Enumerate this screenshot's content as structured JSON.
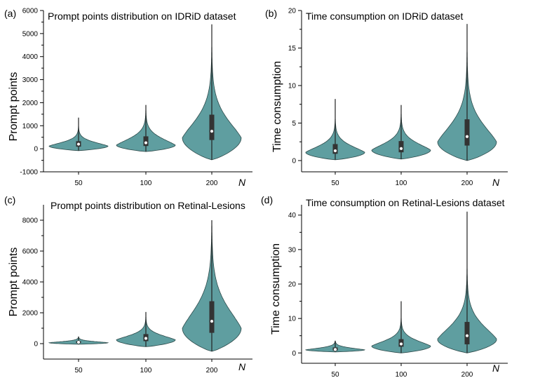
{
  "figure": {
    "violin_color": "#5f9ea0",
    "xlabel": "N"
  },
  "chart_data": [
    {
      "type": "violin",
      "panel": "(a)",
      "title": "Prompt points distribution on IDRiD dataset",
      "xlabel": "N",
      "ylabel": "Prompt points",
      "categories": [
        "50",
        "100",
        "200"
      ],
      "ylim": [
        -1000,
        6000
      ],
      "yticks": [
        -1000,
        0,
        1000,
        2000,
        3000,
        4000,
        5000,
        6000
      ],
      "distributions": [
        {
          "category": "50",
          "min": -80,
          "q1": 90,
          "median": 200,
          "q3": 330,
          "max": 1350,
          "mode": 120
        },
        {
          "category": "100",
          "min": -120,
          "q1": 120,
          "median": 260,
          "q3": 540,
          "max": 1900,
          "mode": 160
        },
        {
          "category": "200",
          "min": -480,
          "q1": 380,
          "median": 760,
          "q3": 1480,
          "max": 5400,
          "mode": 480
        }
      ]
    },
    {
      "type": "violin",
      "panel": "(b)",
      "title": "Time consumption on IDRiD dataset",
      "xlabel": "N",
      "ylabel": "Time consumption",
      "categories": [
        "50",
        "100",
        "200"
      ],
      "ylim": [
        -1.5,
        20
      ],
      "yticks": [
        0,
        5,
        10,
        15,
        20
      ],
      "distributions": [
        {
          "category": "50",
          "min": 0.1,
          "q1": 0.9,
          "median": 1.3,
          "q3": 2.2,
          "max": 8.2,
          "mode": 1.1
        },
        {
          "category": "100",
          "min": 0.2,
          "q1": 1.1,
          "median": 1.6,
          "q3": 2.6,
          "max": 7.4,
          "mode": 1.4
        },
        {
          "category": "200",
          "min": 0,
          "q1": 2.0,
          "median": 3.2,
          "q3": 5.5,
          "max": 18.2,
          "mode": 2.5
        }
      ]
    },
    {
      "type": "violin",
      "panel": "(c)",
      "title": "Prompt points distribution on Retinal-Lesions",
      "xlabel": "N",
      "ylabel": "Prompt points",
      "categories": [
        "50",
        "100",
        "200"
      ],
      "ylim": [
        -1000,
        9000
      ],
      "yticks": [
        0,
        2000,
        4000,
        6000,
        8000
      ],
      "distributions": [
        {
          "category": "50",
          "min": -40,
          "q1": 40,
          "median": 90,
          "q3": 160,
          "max": 450,
          "mode": 60
        },
        {
          "category": "100",
          "min": -200,
          "q1": 160,
          "median": 340,
          "q3": 620,
          "max": 2050,
          "mode": 250
        },
        {
          "category": "200",
          "min": -500,
          "q1": 700,
          "median": 1450,
          "q3": 2750,
          "max": 8000,
          "mode": 1000
        }
      ]
    },
    {
      "type": "violin",
      "panel": "(d)",
      "title": "Time consumption on Retinal-Lesions dataset",
      "xlabel": "N",
      "ylabel": "Time consumption",
      "categories": [
        "50",
        "100",
        "200"
      ],
      "ylim": [
        -3,
        43
      ],
      "yticks": [
        0,
        10,
        20,
        30,
        40
      ],
      "distributions": [
        {
          "category": "50",
          "min": 0.3,
          "q1": 0.7,
          "median": 1.0,
          "q3": 1.6,
          "max": 3.5,
          "mode": 0.9
        },
        {
          "category": "100",
          "min": 0,
          "q1": 1.8,
          "median": 2.6,
          "q3": 4.0,
          "max": 15.0,
          "mode": 2.0
        },
        {
          "category": "200",
          "min": 0,
          "q1": 2.5,
          "median": 5.0,
          "q3": 9.0,
          "max": 41.0,
          "mode": 4.0
        }
      ]
    }
  ]
}
